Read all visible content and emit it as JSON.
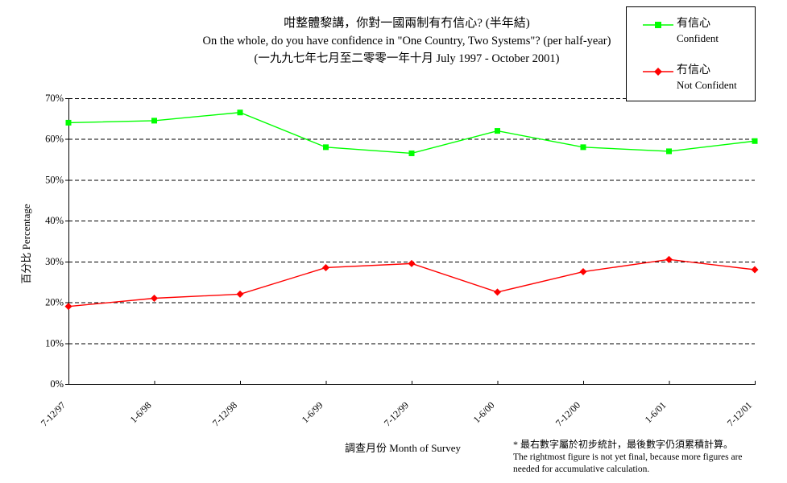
{
  "title": {
    "line1": "咁整體黎講，你對一國兩制有冇信心?  (半年結)",
    "line2": "On the whole, do you have confidence in \"One Country, Two Systems\"? (per half-year)",
    "line3": "(一九九七年七月至二零零一年十月 July 1997 - October 2001)"
  },
  "axes": {
    "y_label": "百分比 Percentage",
    "x_label": "調查月份 Month of Survey",
    "y_tick_suffix": "%"
  },
  "legend": {
    "items": [
      {
        "label_zh": "有信心",
        "label_en": "Confident",
        "color": "#00ff00",
        "marker": "square"
      },
      {
        "label_zh": "冇信心",
        "label_en": "Not Confident",
        "color": "#ff0000",
        "marker": "diamond"
      }
    ]
  },
  "chart_data": {
    "type": "line",
    "title": "咁整體黎講，你對一國兩制有冇信心? (半年結) On the whole, do you have confidence in \"One Country, Two Systems\"? (per half-year) (一九九七年七月至二零零一年十月 July 1997 - October 2001)",
    "xlabel": "調查月份 Month of Survey",
    "ylabel": "百分比 Percentage",
    "categories": [
      "7-12/97",
      "1-6/98",
      "7-12/98",
      "1-6/99",
      "7-12/99",
      "1-6/00",
      "7-12/00",
      "1-6/01",
      "7-12/01"
    ],
    "series": [
      {
        "id": "confident",
        "name": "有信心 Confident",
        "color": "#00ff00",
        "marker": "square",
        "values": [
          64,
          64.5,
          66.5,
          58,
          56.5,
          62,
          58,
          57,
          59.5
        ]
      },
      {
        "id": "not-confident",
        "name": "冇信心 Not Confident",
        "color": "#ff0000",
        "marker": "diamond",
        "values": [
          19,
          21,
          22,
          28.5,
          29.5,
          22.5,
          27.5,
          30.5,
          28
        ]
      }
    ],
    "ylim": [
      0,
      70
    ],
    "ytick_step": 10,
    "yticklabels": [
      "0%",
      "10%",
      "20%",
      "30%",
      "40%",
      "50%",
      "60%",
      "70%"
    ],
    "grid": "horizontal-dashed",
    "legend_position": "top-right"
  },
  "footnote": {
    "line1": "* 最右數字屬於初步統計，最後數字仍須累積計算。",
    "line2": "The rightmost figure is not yet final, because more figures are",
    "line3": "needed for accumulative calculation."
  }
}
